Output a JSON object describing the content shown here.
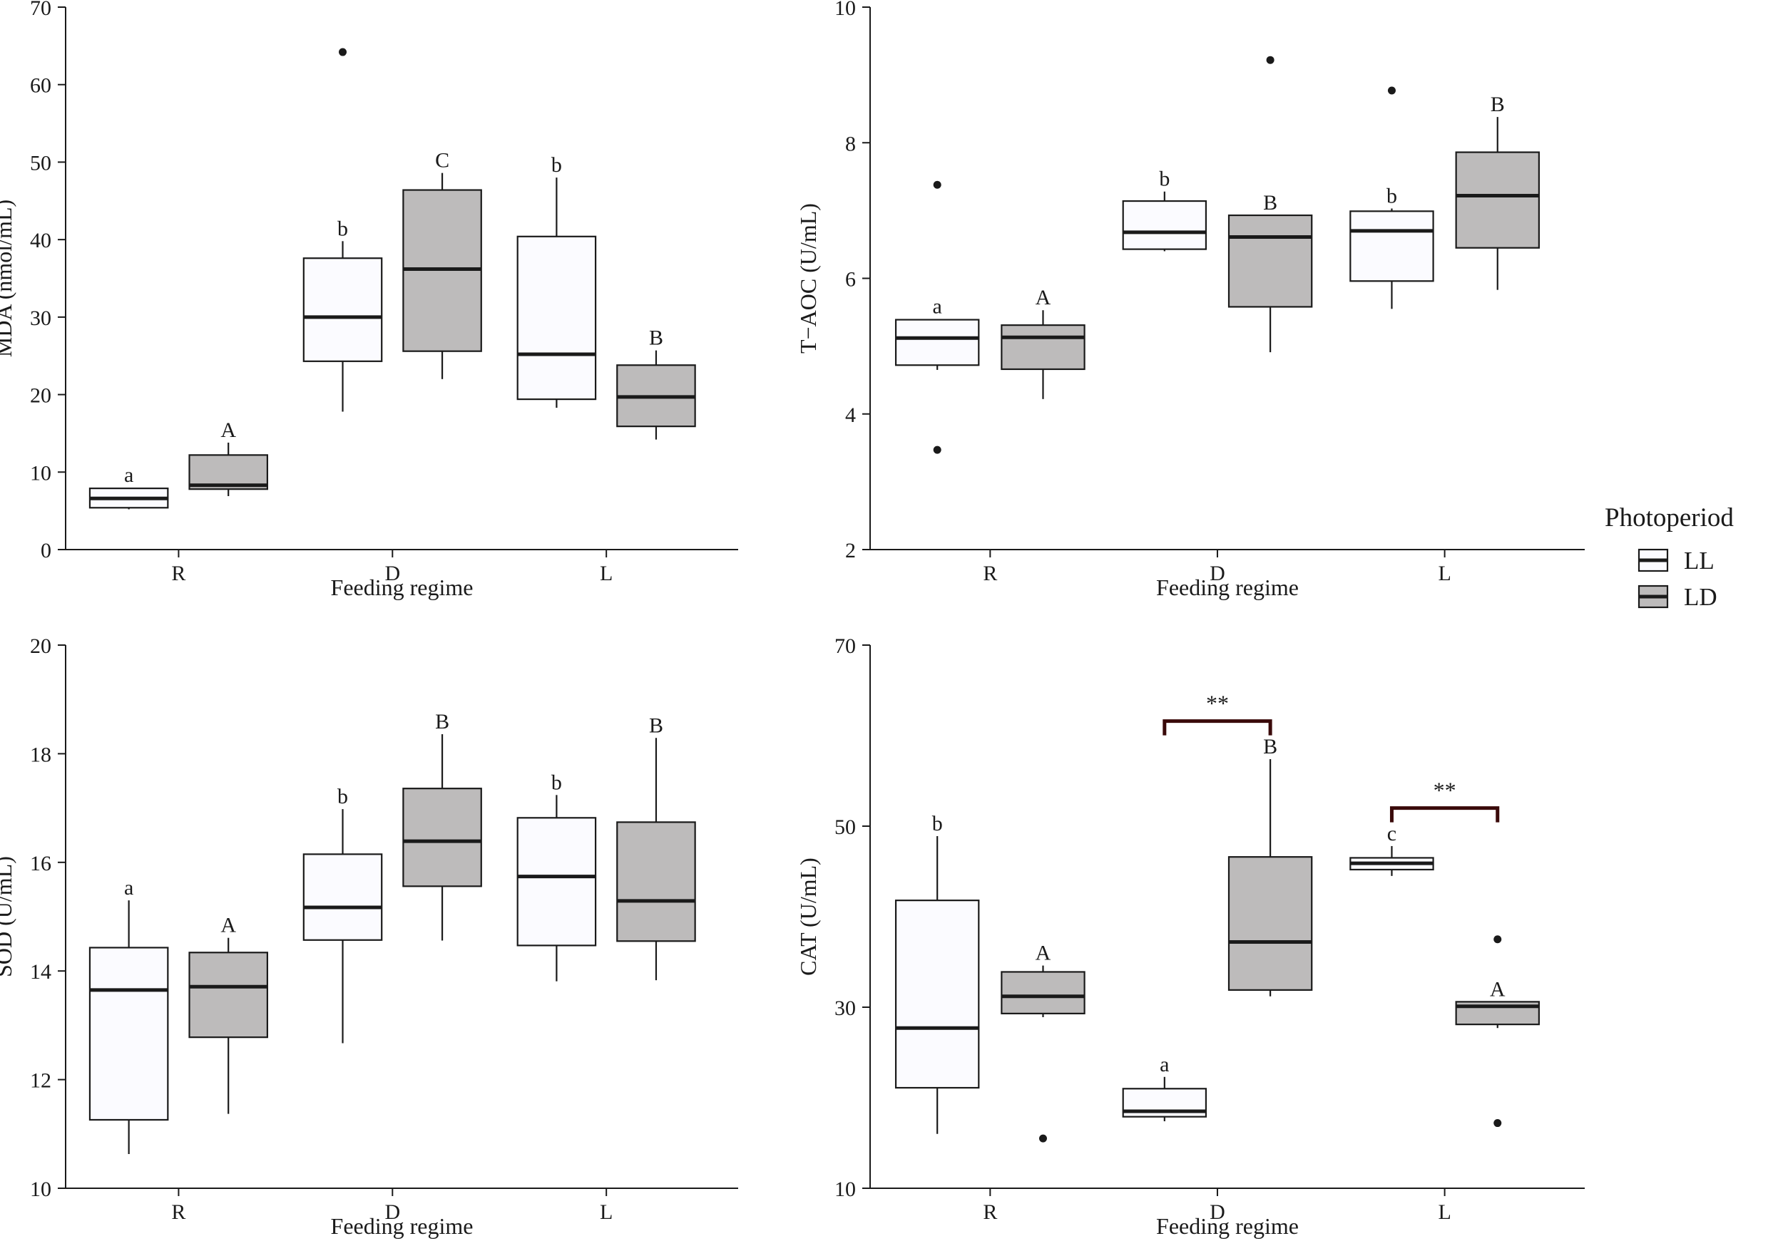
{
  "colors": {
    "LL": "#fbfbff",
    "LD": "#bdbbbb",
    "ink": "#1a1a1a",
    "bracket": "#3a0a0a"
  },
  "legend": {
    "title": "Photoperiod",
    "items": [
      {
        "key": "LL",
        "label": "LL"
      },
      {
        "key": "LD",
        "label": "LD"
      }
    ]
  },
  "chart_data": [
    {
      "type": "box",
      "ylabel": "MDA (nmol/mL)",
      "xlabel": "Feeding regime",
      "categories": [
        "R",
        "D",
        "L"
      ],
      "ylim": [
        0,
        70
      ],
      "yticks": [
        0,
        10,
        20,
        30,
        40,
        50,
        60,
        70
      ],
      "series": [
        {
          "name": "LL",
          "boxes": [
            {
              "category": "R",
              "min": 5.2,
              "q1": 5.4,
              "median": 6.6,
              "q3": 7.9,
              "max": 8.0,
              "outliers": [],
              "letter": "a"
            },
            {
              "category": "D",
              "min": 17.8,
              "q1": 24.3,
              "median": 30.0,
              "q3": 37.6,
              "max": 39.8,
              "outliers": [
                64.2
              ],
              "letter": "b"
            },
            {
              "category": "L",
              "min": 18.3,
              "q1": 19.4,
              "median": 25.2,
              "q3": 40.4,
              "max": 48.0,
              "outliers": [],
              "letter": "b"
            }
          ]
        },
        {
          "name": "LD",
          "boxes": [
            {
              "category": "R",
              "min": 6.9,
              "q1": 7.8,
              "median": 8.3,
              "q3": 12.2,
              "max": 13.8,
              "outliers": [],
              "letter": "A"
            },
            {
              "category": "D",
              "min": 22.0,
              "q1": 25.6,
              "median": 36.2,
              "q3": 46.4,
              "max": 48.6,
              "outliers": [],
              "letter": "C"
            },
            {
              "category": "L",
              "min": 14.2,
              "q1": 15.9,
              "median": 19.7,
              "q3": 23.8,
              "max": 25.7,
              "outliers": [],
              "letter": "B"
            }
          ]
        }
      ],
      "brackets": []
    },
    {
      "type": "box",
      "ylabel": "T−AOC (U/mL)",
      "xlabel": "Feeding regime",
      "categories": [
        "R",
        "D",
        "L"
      ],
      "ylim": [
        2,
        10
      ],
      "yticks": [
        2,
        4,
        6,
        8,
        10
      ],
      "series": [
        {
          "name": "LL",
          "boxes": [
            {
              "category": "R",
              "min": 4.65,
              "q1": 4.72,
              "median": 5.12,
              "q3": 5.39,
              "max": 5.4,
              "outliers": [
                7.38,
                3.47
              ],
              "letter": "a"
            },
            {
              "category": "D",
              "min": 6.4,
              "q1": 6.43,
              "median": 6.68,
              "q3": 7.14,
              "max": 7.28,
              "outliers": [],
              "letter": "b"
            },
            {
              "category": "L",
              "min": 5.55,
              "q1": 5.96,
              "median": 6.7,
              "q3": 6.99,
              "max": 7.03,
              "outliers": [
                8.77
              ],
              "letter": "b"
            }
          ]
        },
        {
          "name": "LD",
          "boxes": [
            {
              "category": "R",
              "min": 4.22,
              "q1": 4.66,
              "median": 5.13,
              "q3": 5.31,
              "max": 5.53,
              "outliers": [],
              "letter": "A"
            },
            {
              "category": "D",
              "min": 4.91,
              "q1": 5.58,
              "median": 6.61,
              "q3": 6.93,
              "max": 6.93,
              "outliers": [
                9.22
              ],
              "letter": "B"
            },
            {
              "category": "L",
              "min": 5.83,
              "q1": 6.45,
              "median": 7.22,
              "q3": 7.86,
              "max": 8.38,
              "outliers": [],
              "letter": "B"
            }
          ]
        }
      ],
      "brackets": []
    },
    {
      "type": "box",
      "ylabel": "SOD (U/mL)",
      "xlabel": "Feeding regime",
      "categories": [
        "R",
        "D",
        "L"
      ],
      "ylim": [
        10,
        20
      ],
      "yticks": [
        10,
        12,
        14,
        16,
        18,
        20
      ],
      "series": [
        {
          "name": "LL",
          "boxes": [
            {
              "category": "R",
              "min": 10.63,
              "q1": 11.26,
              "median": 13.65,
              "q3": 14.43,
              "max": 15.3,
              "outliers": [],
              "letter": "a"
            },
            {
              "category": "D",
              "min": 12.67,
              "q1": 14.57,
              "median": 15.17,
              "q3": 16.15,
              "max": 16.98,
              "outliers": [],
              "letter": "b"
            },
            {
              "category": "L",
              "min": 13.81,
              "q1": 14.47,
              "median": 15.74,
              "q3": 16.82,
              "max": 17.24,
              "outliers": [],
              "letter": "b"
            }
          ]
        },
        {
          "name": "LD",
          "boxes": [
            {
              "category": "R",
              "min": 11.37,
              "q1": 12.78,
              "median": 13.71,
              "q3": 14.34,
              "max": 14.61,
              "outliers": [],
              "letter": "A"
            },
            {
              "category": "D",
              "min": 14.56,
              "q1": 15.56,
              "median": 16.39,
              "q3": 17.36,
              "max": 18.36,
              "outliers": [],
              "letter": "B"
            },
            {
              "category": "L",
              "min": 13.83,
              "q1": 14.55,
              "median": 15.29,
              "q3": 16.74,
              "max": 18.29,
              "outliers": [],
              "letter": "B"
            }
          ]
        }
      ],
      "brackets": []
    },
    {
      "type": "box",
      "ylabel": "CAT (U/mL)",
      "xlabel": "Feeding regime",
      "categories": [
        "R",
        "D",
        "L"
      ],
      "ylim": [
        10,
        70
      ],
      "yticks": [
        10,
        30,
        50,
        70
      ],
      "series": [
        {
          "name": "LL",
          "boxes": [
            {
              "category": "R",
              "min": 16.0,
              "q1": 21.1,
              "median": 27.7,
              "q3": 41.8,
              "max": 48.9,
              "outliers": [],
              "letter": "b"
            },
            {
              "category": "D",
              "min": 17.4,
              "q1": 17.9,
              "median": 18.5,
              "q3": 21.0,
              "max": 22.3,
              "outliers": [],
              "letter": "a"
            },
            {
              "category": "L",
              "min": 44.5,
              "q1": 45.2,
              "median": 45.9,
              "q3": 46.5,
              "max": 47.8,
              "outliers": [],
              "letter": "c"
            }
          ]
        },
        {
          "name": "LD",
          "boxes": [
            {
              "category": "R",
              "min": 28.9,
              "q1": 29.3,
              "median": 31.2,
              "q3": 33.9,
              "max": 34.6,
              "outliers": [
                15.5
              ],
              "letter": "A"
            },
            {
              "category": "D",
              "min": 31.2,
              "q1": 31.9,
              "median": 37.2,
              "q3": 46.6,
              "max": 57.4,
              "outliers": [],
              "letter": "B"
            },
            {
              "category": "L",
              "min": 27.7,
              "q1": 28.1,
              "median": 30.1,
              "q3": 30.6,
              "max": 30.6,
              "outliers": [
                37.5,
                17.2
              ],
              "letter": "A"
            }
          ]
        }
      ],
      "brackets": [
        {
          "category": "D",
          "y": 61.6,
          "label": "**"
        },
        {
          "category": "L",
          "y": 52.0,
          "label": "**"
        }
      ]
    }
  ]
}
